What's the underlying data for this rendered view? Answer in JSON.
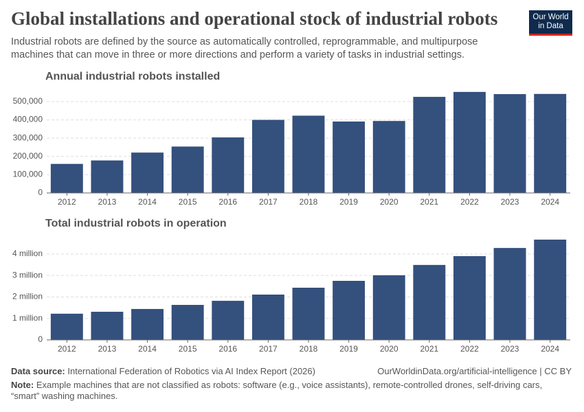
{
  "header": {
    "title": "Global installations and operational stock of industrial robots",
    "subtitle": "Industrial robots are defined by the source as automatically controlled, reprogrammable, and multipurpose machines that can move in three or more directions and perform a variety of tasks in industrial settings.",
    "logo": [
      "Our World",
      "in Data"
    ]
  },
  "chart_data": [
    {
      "type": "bar",
      "title": "Annual industrial robots installed",
      "categories": [
        "2012",
        "2013",
        "2014",
        "2015",
        "2016",
        "2017",
        "2018",
        "2019",
        "2020",
        "2021",
        "2022",
        "2023",
        "2024"
      ],
      "values": [
        159000,
        178000,
        221000,
        254000,
        304000,
        400000,
        423000,
        391000,
        394000,
        526000,
        553000,
        541000,
        542000
      ],
      "color": "#34507d",
      "ylim": [
        0,
        560000
      ],
      "yticks": [
        0,
        {
          "value": 100000,
          "label": "100,000"
        },
        {
          "value": 200000,
          "label": "200,000"
        },
        {
          "value": 300000,
          "label": "300,000"
        },
        {
          "value": 400000,
          "label": "400,000"
        },
        {
          "value": 500000,
          "label": "500,000"
        }
      ],
      "grid": true
    },
    {
      "type": "bar",
      "title": "Total industrial robots in operation",
      "categories": [
        "2012",
        "2013",
        "2014",
        "2015",
        "2016",
        "2017",
        "2018",
        "2019",
        "2020",
        "2021",
        "2022",
        "2023",
        "2024"
      ],
      "values": [
        1220000,
        1310000,
        1440000,
        1630000,
        1820000,
        2110000,
        2430000,
        2750000,
        3010000,
        3490000,
        3900000,
        4280000,
        4670000
      ],
      "color": "#34507d",
      "ylim": [
        0,
        4700000
      ],
      "yticks": [
        0,
        {
          "value": 1000000,
          "label": "1 million"
        },
        {
          "value": 2000000,
          "label": "2 million"
        },
        {
          "value": 3000000,
          "label": "3 million"
        },
        {
          "value": 4000000,
          "label": "4 million"
        }
      ],
      "grid": true
    }
  ],
  "footer": {
    "source_label": "Data source:",
    "source": "International Federation of Robotics via AI Index Report (2026)",
    "url": "OurWorldinData.org/artificial-intelligence | CC BY",
    "note_label": "Note:",
    "note": "Example machines that are not classified as robots: software (e.g., voice assistants), remote-controlled drones, self-driving cars, “smart” washing machines."
  }
}
